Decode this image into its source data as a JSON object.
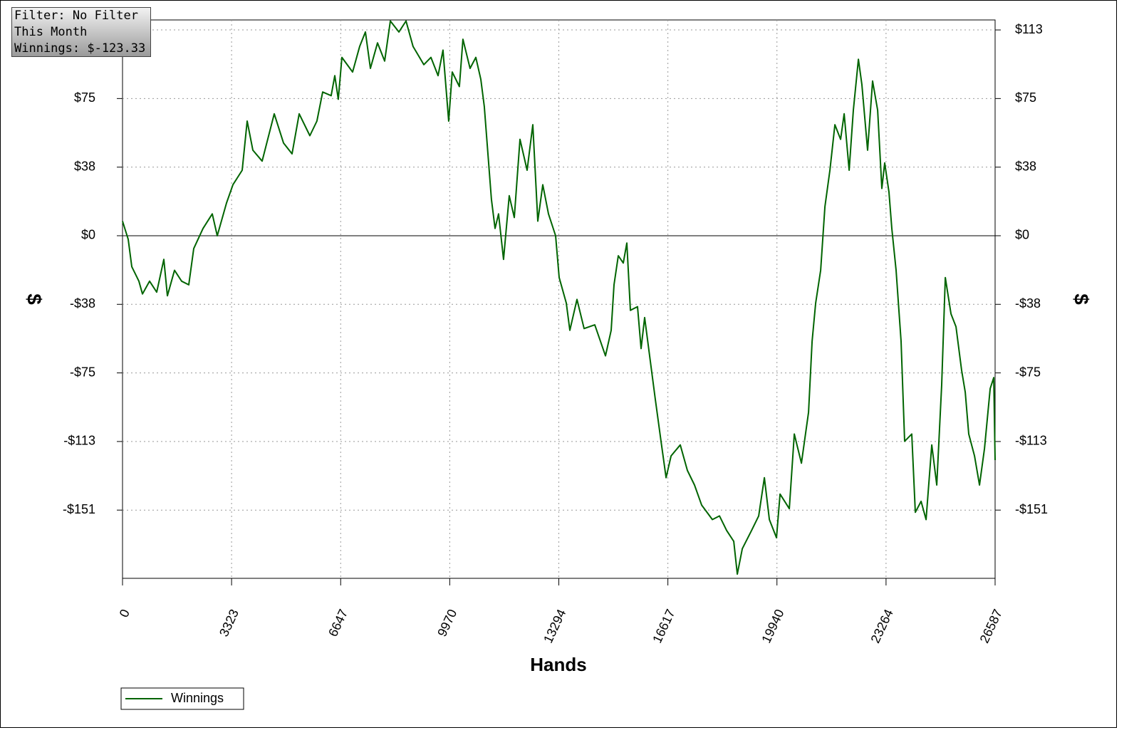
{
  "chart_data": {
    "type": "line",
    "annotations": [
      "Filter: No Filter",
      "This Month",
      "Winnings: $-123.33"
    ],
    "xlabel": "Hands",
    "ylabel": "$",
    "y2label": "$",
    "xlim": [
      0,
      26587
    ],
    "xticks": [
      0,
      3323,
      6647,
      9970,
      13294,
      16617,
      19940,
      23264,
      26587
    ],
    "ylim": [
      -188.3,
      118.6
    ],
    "yticks": [
      {
        "value": 113.1,
        "label": "$113"
      },
      {
        "value": 75.4,
        "label": "$75"
      },
      {
        "value": 37.7,
        "label": "$38"
      },
      {
        "value": 0,
        "label": "$0"
      },
      {
        "value": -37.7,
        "label": "-$38"
      },
      {
        "value": -75.4,
        "label": "-$75"
      },
      {
        "value": -113.1,
        "label": "-$113"
      },
      {
        "value": -150.8,
        "label": "-$151"
      }
    ],
    "grid": true,
    "legend": "bottom-left",
    "x": [
      0,
      174,
      282,
      499,
      608,
      825,
      1042,
      1259,
      1367,
      1584,
      1801,
      2018,
      2170,
      2452,
      2734,
      2886,
      3168,
      3364,
      3646,
      3798,
      3972,
      4254,
      4622,
      4904,
      5165,
      5382,
      5707,
      5924,
      6098,
      6358,
      6467,
      6575,
      6684,
      7010,
      7226,
      7400,
      7552,
      7769,
      7986,
      8160,
      8420,
      8637,
      8854,
      9180,
      9397,
      9614,
      9765,
      9939,
      10047,
      10264,
      10373,
      10590,
      10764,
      10916,
      11024,
      11241,
      11350,
      11458,
      11610,
      11784,
      11936,
      12110,
      12327,
      12501,
      12653,
      12805,
      12978,
      13195,
      13304,
      13521,
      13630,
      13847,
      14064,
      14390,
      14715,
      14889,
      14976,
      15106,
      15258,
      15367,
      15475,
      15692,
      15801,
      15909,
      16061,
      16235,
      16409,
      16561,
      16713,
      16995,
      17212,
      17429,
      17646,
      17972,
      18189,
      18406,
      18623,
      18732,
      18884,
      19166,
      19383,
      19557,
      19709,
      19926,
      20034,
      20316,
      20468,
      20685,
      20902,
      21011,
      21119,
      21271,
      21401,
      21553,
      21705,
      21879,
      21987,
      22139,
      22269,
      22421,
      22529,
      22703,
      22855,
      23007,
      23137,
      23224,
      23354,
      23441,
      23571,
      23723,
      23831,
      24048,
      24157,
      24331,
      24483,
      24657,
      24809,
      24960,
      25069,
      25243,
      25395,
      25568,
      25677,
      25785,
      25959,
      26111,
      26263,
      26437,
      26545,
      26587
    ],
    "series": [
      {
        "name": "Winnings",
        "color": "#006400",
        "values": [
          8,
          -2,
          -17,
          -25,
          -32,
          -25,
          -31,
          -13,
          -33,
          -19,
          -25,
          -27,
          -7,
          4,
          12,
          0,
          18,
          28,
          36,
          63,
          47,
          41,
          67,
          51,
          45,
          67,
          55,
          63,
          79,
          77,
          88,
          75,
          98,
          90,
          104,
          112,
          92,
          106,
          96,
          118,
          112,
          118,
          104,
          94,
          98,
          88,
          102,
          63,
          90,
          82,
          108,
          92,
          98,
          86,
          71,
          20,
          4,
          12,
          -13,
          22,
          10,
          53,
          36,
          61,
          8,
          28,
          12,
          0,
          -23,
          -37,
          -52,
          -35,
          -51,
          -49,
          -66,
          -52,
          -27,
          -11,
          -15,
          -4,
          -41,
          -39,
          -62,
          -45,
          -66,
          -90,
          -113,
          -133,
          -121,
          -115,
          -129,
          -137,
          -148,
          -156,
          -154,
          -162,
          -168,
          -186,
          -172,
          -162,
          -154,
          -133,
          -156,
          -166,
          -142,
          -150,
          -109,
          -125,
          -97,
          -58,
          -37,
          -19,
          16,
          36,
          61,
          53,
          67,
          36,
          69,
          97,
          83,
          47,
          85,
          69,
          26,
          40,
          24,
          4,
          -19,
          -58,
          -113,
          -109,
          -152,
          -146,
          -156,
          -115,
          -137,
          -82,
          -23,
          -43,
          -50,
          -74,
          -86,
          -109,
          -121,
          -137,
          -117,
          -84,
          -78,
          -123.33
        ]
      }
    ]
  }
}
